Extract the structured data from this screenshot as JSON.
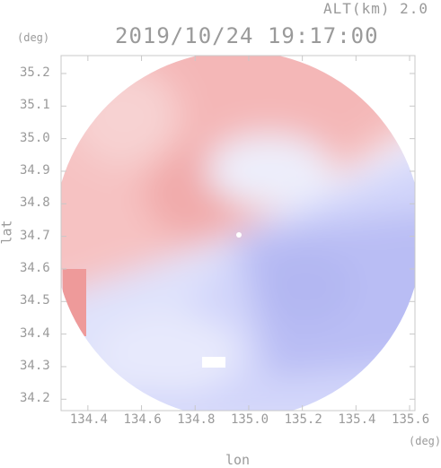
{
  "header": {
    "altitude": "ALT(km) 2.0",
    "timestamp": "2019/10/24 19:17:00"
  },
  "axes": {
    "y_unit": "(deg)",
    "x_unit": "(deg)",
    "y_title": "lat",
    "x_title": "lon",
    "y_ticks": [
      "35.2",
      "35.1",
      "35.0",
      "34.9",
      "34.8",
      "34.7",
      "34.6",
      "34.5",
      "34.4",
      "34.3",
      "34.2"
    ],
    "x_ticks": [
      "134.4",
      "134.6",
      "134.8",
      "135.0",
      "135.2",
      "135.4",
      "135.6"
    ]
  },
  "map": {
    "lon_range": [
      134.3,
      135.62
    ],
    "lat_range": [
      34.165,
      35.255
    ],
    "radar_center": {
      "lon": 134.94,
      "lat": 34.705
    },
    "colors": {
      "approaching_red": "#f4a3a3",
      "receding_blue": "#b0b4f2",
      "frame": "#c8c8c8"
    }
  }
}
